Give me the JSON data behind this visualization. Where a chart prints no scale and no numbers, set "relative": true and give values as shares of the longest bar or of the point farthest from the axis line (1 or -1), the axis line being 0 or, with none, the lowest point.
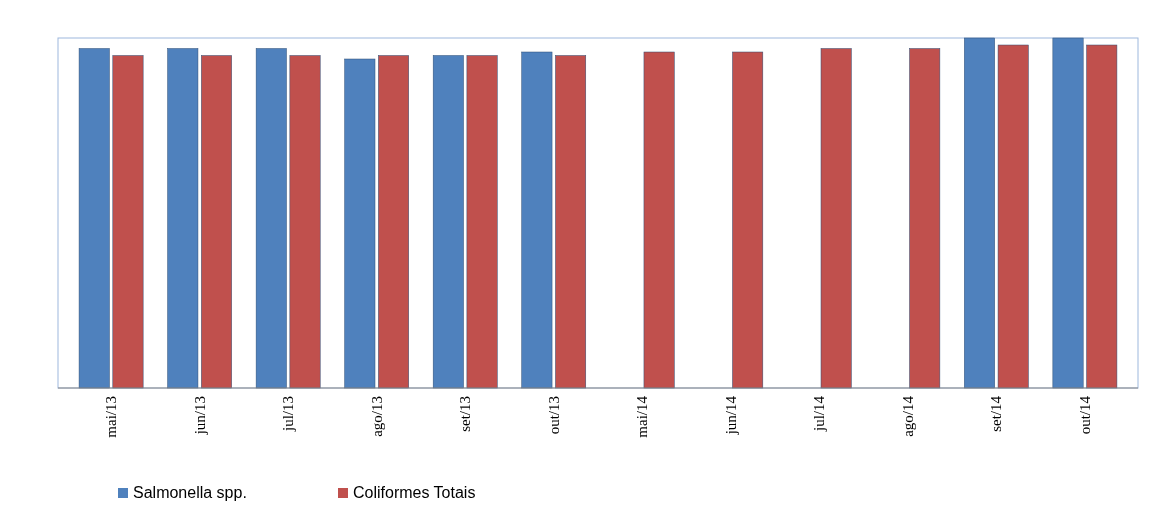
{
  "chart_data": {
    "type": "bar",
    "relative": true,
    "categories": [
      "mai/13",
      "jun/13",
      "jul/13",
      "ago/13",
      "set/13",
      "out/13",
      "mai/14",
      "jun/14",
      "jul/14",
      "ago/14",
      "set/14",
      "out/14"
    ],
    "series": [
      {
        "name": "Salmonella spp.",
        "color": "#4f81bd",
        "values": [
          0.97,
          0.97,
          0.97,
          0.94,
          0.95,
          0.96,
          0,
          0,
          0,
          0,
          1,
          1
        ]
      },
      {
        "name": "Coliformes Totais",
        "color": "#c0504d",
        "values": [
          0.95,
          0.95,
          0.95,
          0.95,
          0.95,
          0.95,
          0.96,
          0.96,
          0.97,
          0.97,
          0.98,
          0.98
        ]
      }
    ],
    "legend": "bottom left"
  }
}
